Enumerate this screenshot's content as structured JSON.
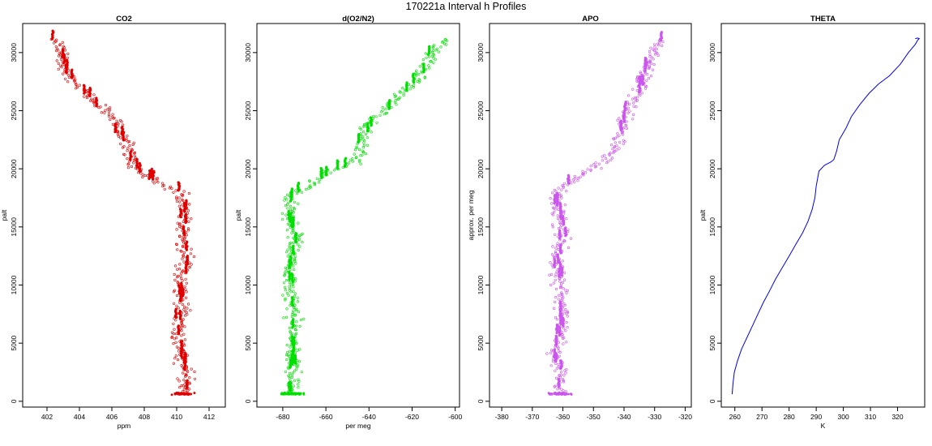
{
  "figure": {
    "title": "170221a   Interval h Profiles"
  },
  "chart_data": [
    {
      "type": "scatter",
      "title": "CO2",
      "xlabel": "ppm",
      "ylabel": "palt",
      "xlim": [
        400.5,
        413
      ],
      "ylim": [
        -500,
        32500
      ],
      "xticks": [
        402,
        404,
        406,
        408,
        410,
        412
      ],
      "yticks": [
        0,
        5000,
        10000,
        15000,
        20000,
        25000,
        30000
      ],
      "color": "#e00000",
      "grid": false,
      "profile": [
        {
          "x": 402.5,
          "y": 31200
        },
        {
          "x": 402.8,
          "y": 30000
        },
        {
          "x": 403.2,
          "y": 28500
        },
        {
          "x": 404.0,
          "y": 27000
        },
        {
          "x": 405.0,
          "y": 25800
        },
        {
          "x": 406.0,
          "y": 24500
        },
        {
          "x": 406.6,
          "y": 23000
        },
        {
          "x": 407.0,
          "y": 21500
        },
        {
          "x": 407.3,
          "y": 20200
        },
        {
          "x": 408.0,
          "y": 19500
        },
        {
          "x": 409.0,
          "y": 18800
        },
        {
          "x": 410.2,
          "y": 18000
        },
        {
          "x": 410.5,
          "y": 16000
        },
        {
          "x": 410.3,
          "y": 14000
        },
        {
          "x": 410.6,
          "y": 12000
        },
        {
          "x": 410.2,
          "y": 10000
        },
        {
          "x": 410.4,
          "y": 8000
        },
        {
          "x": 410.0,
          "y": 6000
        },
        {
          "x": 410.3,
          "y": 4000
        },
        {
          "x": 410.6,
          "y": 2000
        },
        {
          "x": 410.4,
          "y": 800
        }
      ]
    },
    {
      "type": "scatter",
      "title": "d(O2/N2)",
      "xlabel": "per meg",
      "ylabel": "palt",
      "xlim": [
        -692,
        -598
      ],
      "ylim": [
        -500,
        32500
      ],
      "xticks": [
        -680,
        -660,
        -640,
        -620,
        -600
      ],
      "yticks": [
        0,
        5000,
        10000,
        15000,
        20000,
        25000,
        30000
      ],
      "color": "#00e000",
      "grid": false,
      "profile": [
        {
          "x": -605,
          "y": 31200
        },
        {
          "x": -610,
          "y": 30000
        },
        {
          "x": -615,
          "y": 28500
        },
        {
          "x": -620,
          "y": 27200
        },
        {
          "x": -628,
          "y": 26000
        },
        {
          "x": -633,
          "y": 25000
        },
        {
          "x": -640,
          "y": 24000
        },
        {
          "x": -643,
          "y": 22800
        },
        {
          "x": -644,
          "y": 21500
        },
        {
          "x": -646,
          "y": 20500
        },
        {
          "x": -658,
          "y": 19800
        },
        {
          "x": -667,
          "y": 18600
        },
        {
          "x": -677,
          "y": 17600
        },
        {
          "x": -677,
          "y": 16000
        },
        {
          "x": -674,
          "y": 14000
        },
        {
          "x": -676,
          "y": 12000
        },
        {
          "x": -677,
          "y": 10000
        },
        {
          "x": -675,
          "y": 8000
        },
        {
          "x": -675,
          "y": 6000
        },
        {
          "x": -676,
          "y": 4000
        },
        {
          "x": -674,
          "y": 2000
        },
        {
          "x": -676,
          "y": 800
        }
      ]
    },
    {
      "type": "scatter",
      "title": "APO",
      "xlabel": "",
      "ylabel": "approx. per meg",
      "xlim": [
        -384,
        -318
      ],
      "ylim": [
        -500,
        32500
      ],
      "xticks": [
        -380,
        -370,
        -360,
        -350,
        -340,
        -330,
        -320
      ],
      "yticks": [
        0,
        5000,
        10000,
        15000,
        20000,
        25000,
        30000
      ],
      "color": "#cc55ee",
      "grid": false,
      "profile": [
        {
          "x": -327,
          "y": 31200
        },
        {
          "x": -330,
          "y": 30000
        },
        {
          "x": -333,
          "y": 28500
        },
        {
          "x": -334,
          "y": 27000
        },
        {
          "x": -337,
          "y": 25800
        },
        {
          "x": -340,
          "y": 24500
        },
        {
          "x": -341,
          "y": 23000
        },
        {
          "x": -343,
          "y": 21800
        },
        {
          "x": -346,
          "y": 20800
        },
        {
          "x": -352,
          "y": 19800
        },
        {
          "x": -358,
          "y": 18800
        },
        {
          "x": -362,
          "y": 17800
        },
        {
          "x": -361,
          "y": 16000
        },
        {
          "x": -360,
          "y": 14000
        },
        {
          "x": -362,
          "y": 12000
        },
        {
          "x": -361,
          "y": 10000
        },
        {
          "x": -360,
          "y": 8000
        },
        {
          "x": -361,
          "y": 6000
        },
        {
          "x": -362,
          "y": 4000
        },
        {
          "x": -360,
          "y": 2000
        },
        {
          "x": -361,
          "y": 800
        }
      ]
    },
    {
      "type": "line",
      "title": "THETA",
      "xlabel": "K",
      "ylabel": "palt",
      "xlim": [
        255,
        330
      ],
      "ylim": [
        -500,
        32500
      ],
      "xticks": [
        260,
        270,
        280,
        290,
        300,
        310,
        320
      ],
      "yticks": [
        0,
        5000,
        10000,
        15000,
        20000,
        25000,
        30000
      ],
      "color": "#0000ee",
      "grid": false,
      "series": [
        {
          "x": [
            259.0,
            259.3,
            259.8,
            261.0,
            262.5,
            264.5,
            266.5,
            268.5,
            270.5,
            272.8,
            275.0,
            277.5,
            280.0,
            282.5,
            285.0,
            287.0,
            288.5,
            289.5,
            290.0,
            291.0,
            293.0,
            295.5,
            296.5,
            297.5,
            298.5,
            301.0,
            303.0,
            306.0,
            309.5,
            313.0,
            317.0,
            321.0,
            324.0,
            326.5,
            327.5,
            328.0,
            327.5,
            326.5
          ],
          "y": [
            600,
            1500,
            2500,
            3500,
            4500,
            5500,
            6500,
            7500,
            8500,
            9500,
            10500,
            11500,
            12500,
            13500,
            14500,
            15500,
            16500,
            17500,
            18500,
            19800,
            20300,
            20600,
            20800,
            21500,
            22500,
            23500,
            24500,
            25500,
            26500,
            27300,
            28000,
            29000,
            30000,
            30700,
            31100,
            31200,
            31250,
            31200
          ]
        }
      ]
    }
  ]
}
